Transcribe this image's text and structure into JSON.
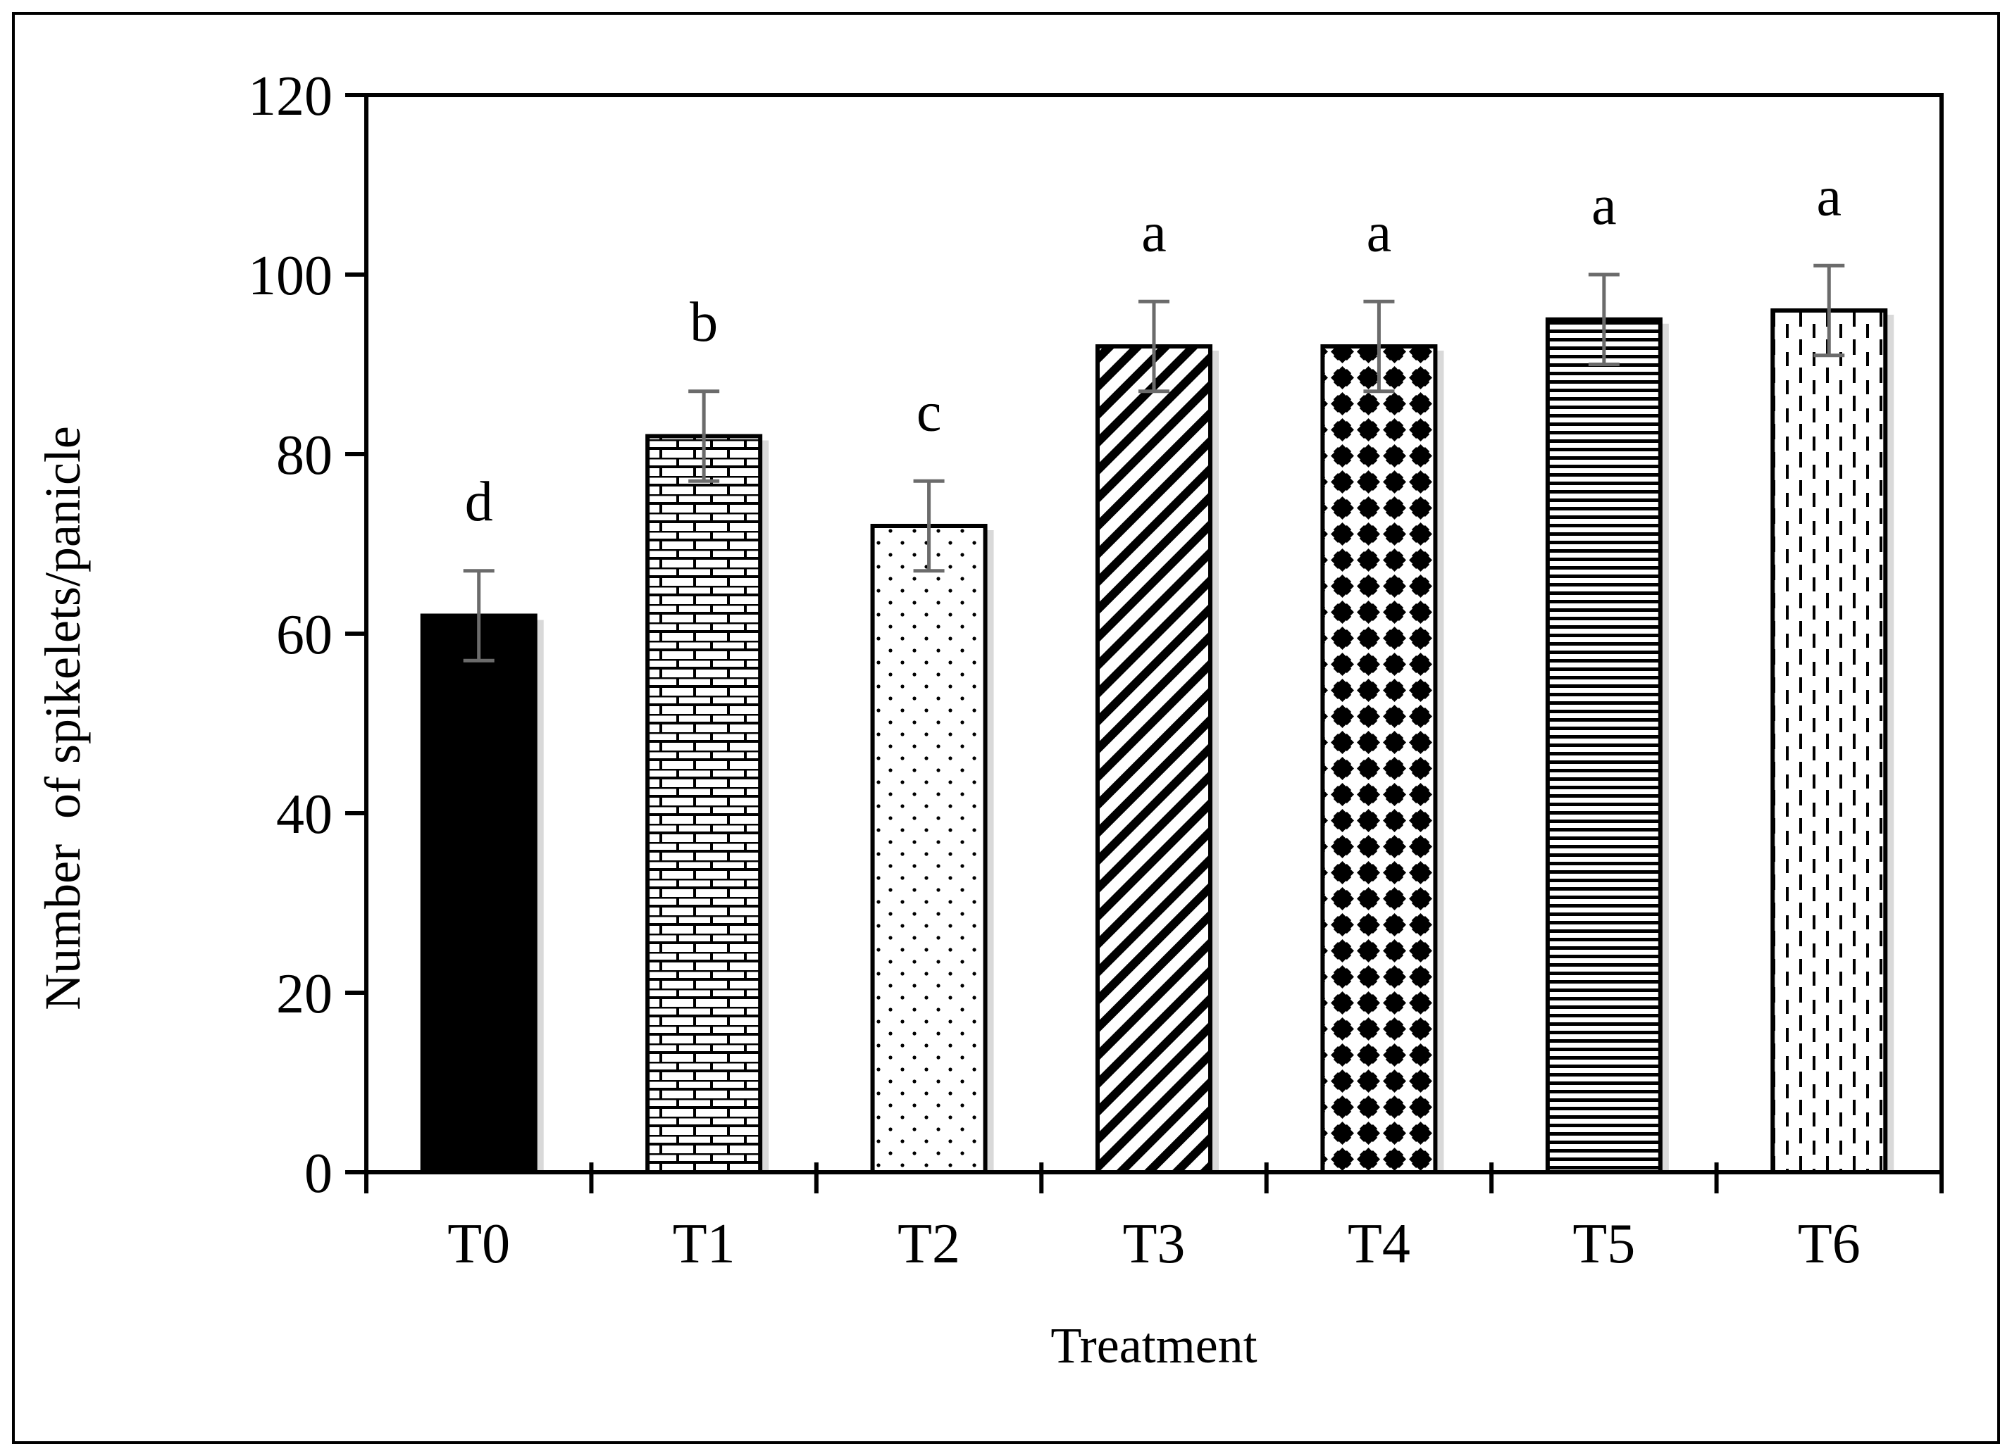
{
  "chart_data": {
    "type": "bar",
    "title": "",
    "xlabel": "Treatment",
    "ylabel": "Number  of spikelets/panicle",
    "categories": [
      "T0",
      "T1",
      "T2",
      "T3",
      "T4",
      "T5",
      "T6"
    ],
    "values": [
      62,
      82,
      72,
      92,
      92,
      95,
      96
    ],
    "errors": [
      5,
      5,
      5,
      5,
      5,
      5,
      5
    ],
    "significance_letters": [
      "d",
      "b",
      "c",
      "a",
      "a",
      "a",
      "a"
    ],
    "bar_patterns": [
      "solid-black",
      "brick",
      "dots",
      "diagonal-stripes",
      "diamond-grid",
      "horizontal-lines",
      "dashed-vertical"
    ],
    "ylim": [
      0,
      120
    ],
    "yticks": [
      "0",
      "20",
      "40",
      "60",
      "80",
      "100",
      "120"
    ],
    "grid": false,
    "legend": "none",
    "colors": {
      "bar_outline": "#000000",
      "error_bar": "#6b6b6b",
      "bar_shadow": "#d9d9d9"
    }
  }
}
